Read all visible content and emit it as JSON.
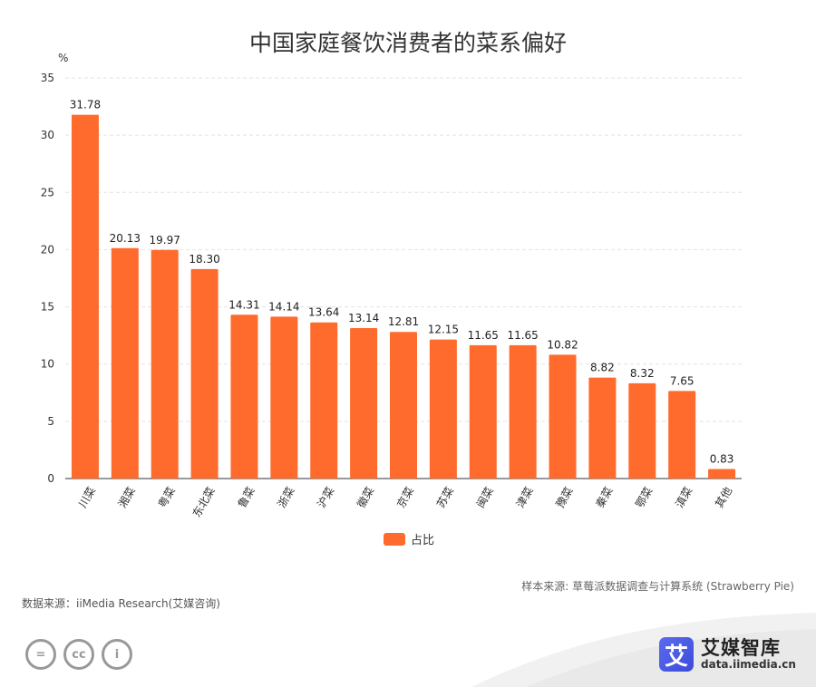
{
  "chart_data": {
    "type": "bar",
    "title": "中国家庭餐饮消费者的菜系偏好",
    "ylabel": "%",
    "xlabel": "",
    "ylim": [
      0,
      35
    ],
    "yticks": [
      "0",
      "5",
      "10",
      "15",
      "20",
      "25",
      "30",
      "35"
    ],
    "categories": [
      "川菜",
      "湘菜",
      "粤菜",
      "东北菜",
      "鲁菜",
      "浙菜",
      "沪菜",
      "徽菜",
      "京菜",
      "苏菜",
      "闽菜",
      "津菜",
      "豫菜",
      "秦菜",
      "鄂菜",
      "滇菜",
      "其他"
    ],
    "series": [
      {
        "name": "占比",
        "values": [
          31.78,
          20.13,
          19.97,
          18.3,
          14.31,
          14.14,
          13.64,
          13.14,
          12.81,
          12.15,
          11.65,
          11.65,
          10.82,
          8.82,
          8.32,
          7.65,
          0.83
        ],
        "labels": [
          "31.78",
          "20.13",
          "19.97",
          "18.30",
          "14.31",
          "14.14",
          "13.64",
          "13.14",
          "12.81",
          "12.15",
          "11.65",
          "11.65",
          "10.82",
          "8.82",
          "8.32",
          "7.65",
          "0.83"
        ],
        "color": "#ff6b2c"
      }
    ],
    "legend": "bottom-center",
    "grid": true
  },
  "sources": {
    "sample": "样本来源: 草莓派数据调查与计算系统 (Strawberry Pie)",
    "data": "数据来源：iiMedia Research(艾媒咨询)"
  },
  "brand": {
    "logo_glyph": "艾",
    "name": "艾媒智库",
    "url": "data.iimedia.cn",
    "color": "#4a5ae6"
  },
  "license_icons": [
    "=",
    "cc",
    "i"
  ]
}
